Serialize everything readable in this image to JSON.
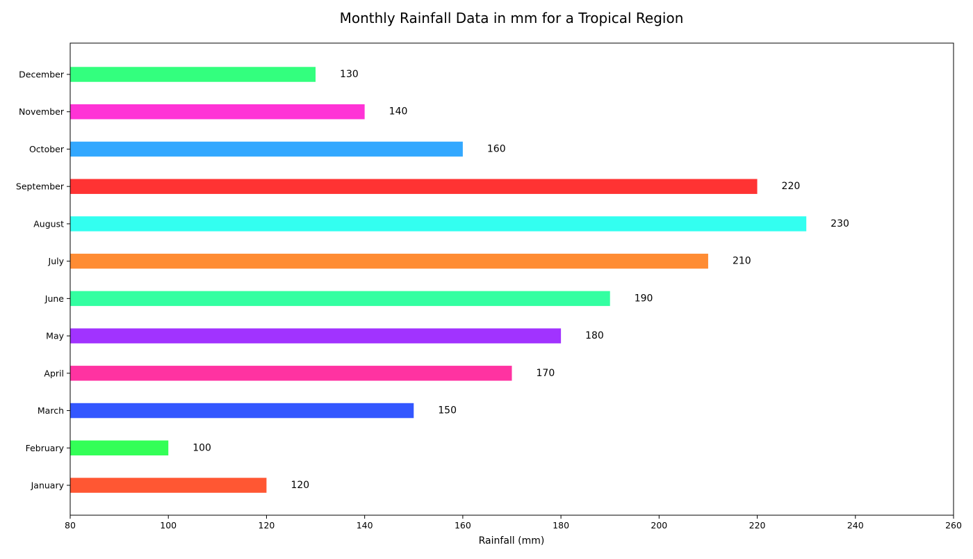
{
  "chart_data": {
    "type": "bar",
    "orientation": "horizontal",
    "title": "Monthly Rainfall Data in mm for a Tropical Region",
    "xlabel": "Rainfall (mm)",
    "ylabel": "",
    "xlim": [
      80,
      260
    ],
    "x_ticks": [
      80,
      100,
      120,
      140,
      160,
      180,
      200,
      220,
      240,
      260
    ],
    "grid": false,
    "categories": [
      "January",
      "February",
      "March",
      "April",
      "May",
      "June",
      "July",
      "August",
      "September",
      "October",
      "November",
      "December"
    ],
    "values": [
      120,
      100,
      150,
      170,
      180,
      190,
      210,
      230,
      220,
      160,
      140,
      130
    ],
    "data_labels": [
      "120",
      "100",
      "150",
      "170",
      "180",
      "190",
      "210",
      "230",
      "220",
      "160",
      "140",
      "130"
    ],
    "colors": [
      "#FF5733",
      "#33FF57",
      "#3357FF",
      "#FF33A1",
      "#A133FF",
      "#33FFA1",
      "#FF8C33",
      "#33FFF0",
      "#FF3333",
      "#33A8FF",
      "#FF33D6",
      "#33FF7E"
    ]
  }
}
